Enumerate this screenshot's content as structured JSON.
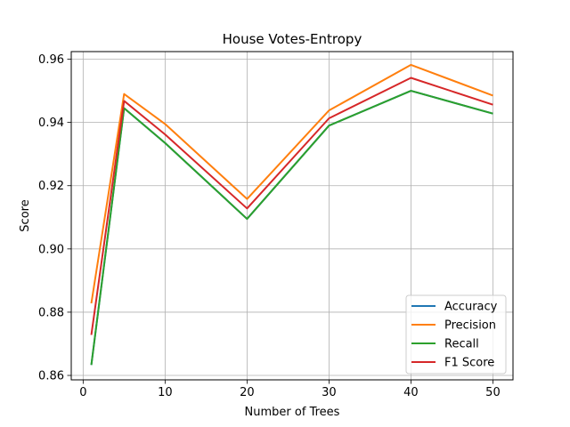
{
  "chart_data": {
    "type": "line",
    "title": "House Votes-Entropy",
    "xlabel": "Number of Trees",
    "ylabel": "Score",
    "x": [
      1,
      5,
      10,
      20,
      30,
      40,
      50
    ],
    "xlim": [
      -1.45,
      52.45
    ],
    "ylim": [
      0.8586,
      0.9624
    ],
    "xticks": [
      0,
      10,
      20,
      30,
      40,
      50
    ],
    "yticks": [
      0.86,
      0.88,
      0.9,
      0.92,
      0.94,
      0.96
    ],
    "xtick_labels": [
      "0",
      "10",
      "20",
      "30",
      "40",
      "50"
    ],
    "ytick_labels": [
      "0.86",
      "0.88",
      "0.90",
      "0.92",
      "0.94",
      "0.96"
    ],
    "grid": true,
    "legend_position": "lower-right",
    "series": [
      {
        "name": "Accuracy",
        "color": "#1f77b4",
        "values": [
          0.8633,
          0.9445,
          0.9335,
          0.9095,
          0.939,
          0.95,
          0.9428
        ]
      },
      {
        "name": "Precision",
        "color": "#ff7f0e",
        "values": [
          0.8828,
          0.949,
          0.9395,
          0.9158,
          0.9438,
          0.9582,
          0.9485
        ]
      },
      {
        "name": "Recall",
        "color": "#2ca02c",
        "values": [
          0.8633,
          0.9445,
          0.9335,
          0.9095,
          0.939,
          0.95,
          0.9428
        ]
      },
      {
        "name": "F1 Score",
        "color": "#d62728",
        "values": [
          0.8728,
          0.9468,
          0.9362,
          0.9128,
          0.9413,
          0.9541,
          0.9456
        ]
      }
    ]
  }
}
